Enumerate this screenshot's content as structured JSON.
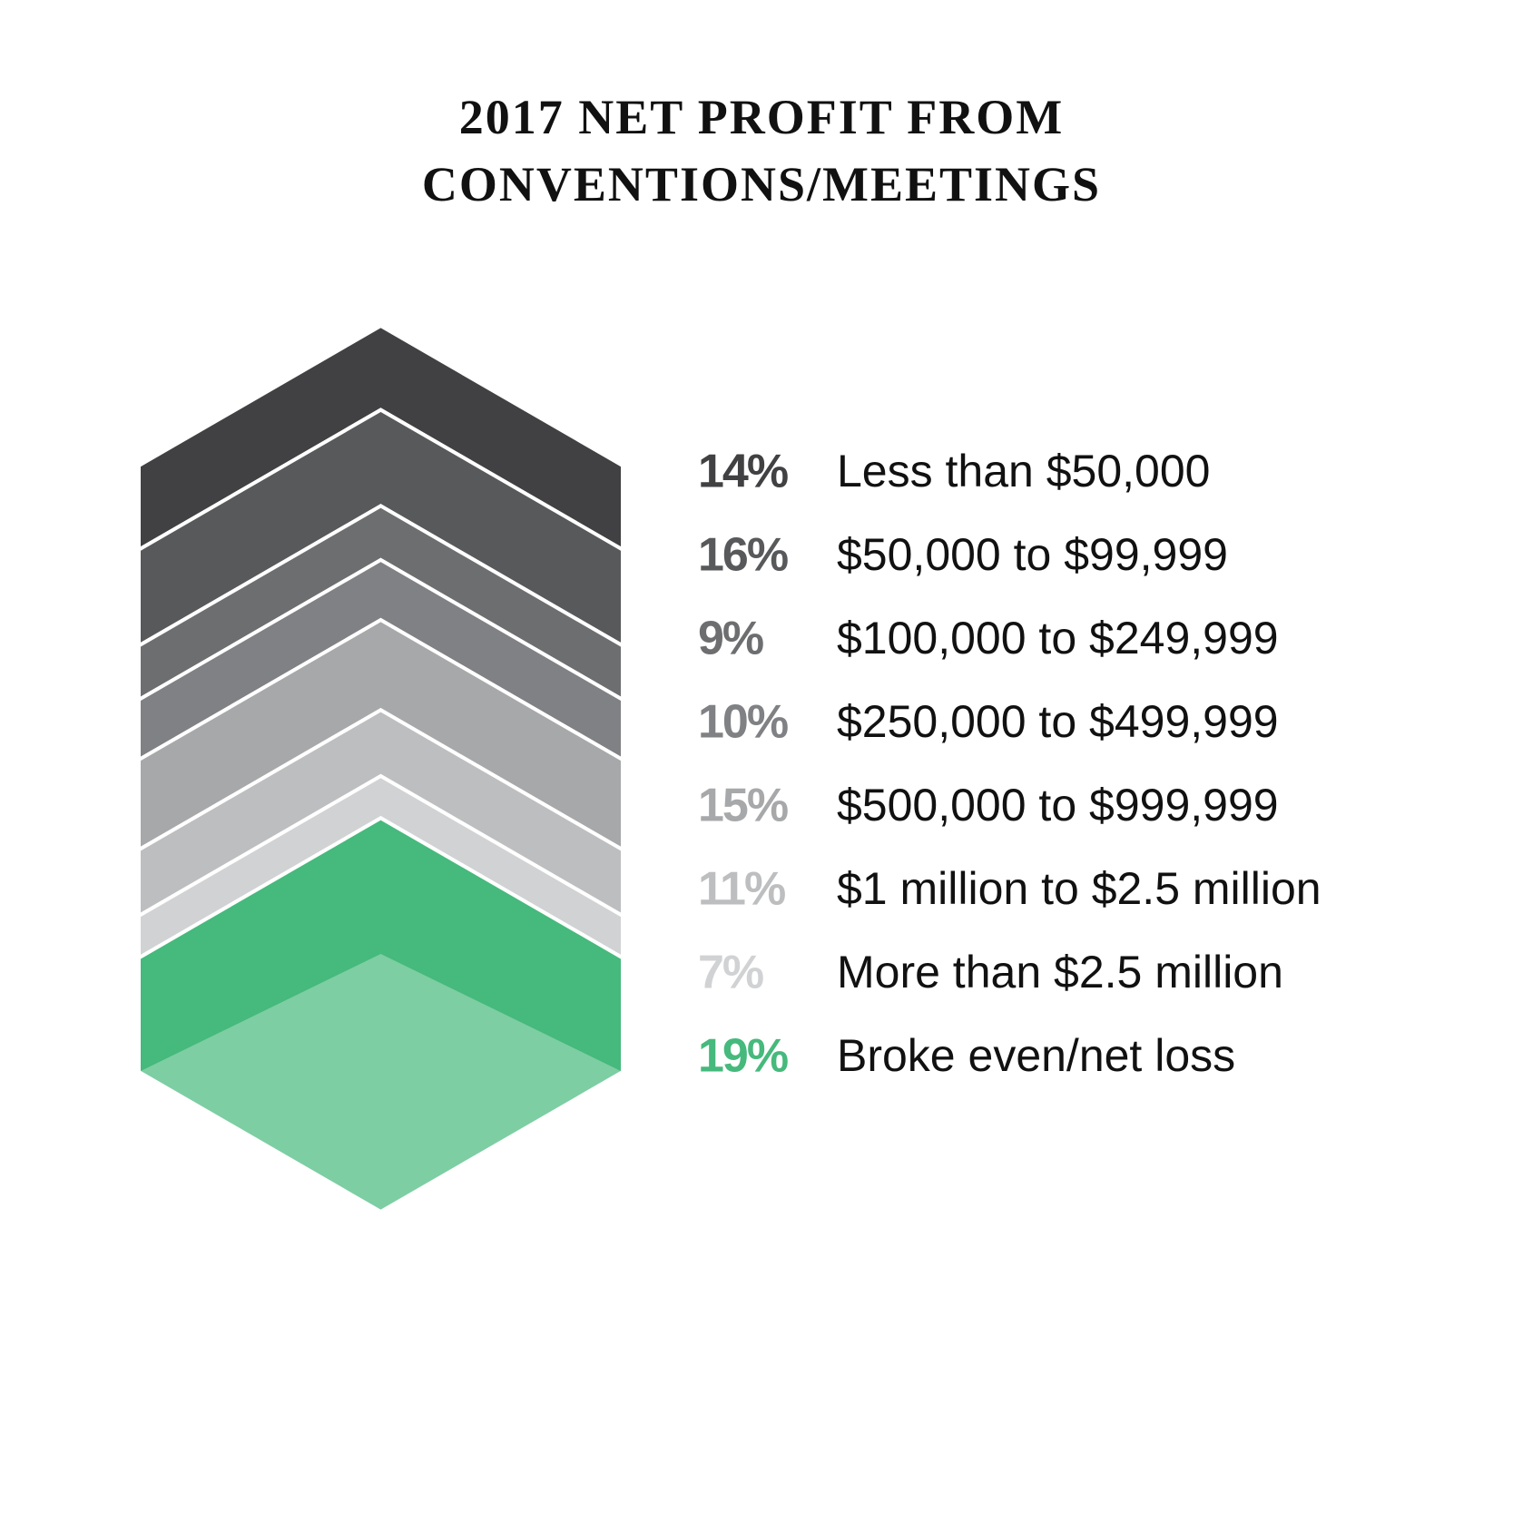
{
  "chart_data": {
    "type": "stacked-chevron",
    "title": "2017 NET PROFIT FROM CONVENTIONS/MEETINGS",
    "categories": [
      "Less than $50,000",
      "$50,000 to $99,999",
      "$100,000 to $249,999",
      "$250,000 to $499,999",
      "$500,000 to $999,999",
      "$1 million to $2.5 million",
      "More than $2.5 million",
      "Broke even/net loss"
    ],
    "values": [
      14,
      16,
      9,
      10,
      15,
      11,
      7,
      19
    ],
    "value_labels": [
      "14%",
      "16%",
      "9%",
      "10%",
      "15%",
      "11%",
      "7%",
      "19%"
    ],
    "colors": [
      "#414143",
      "#58595b",
      "#6d6e70",
      "#808184",
      "#a7a8aa",
      "#bdbec0",
      "#d1d2d4",
      "#46b97c"
    ]
  }
}
